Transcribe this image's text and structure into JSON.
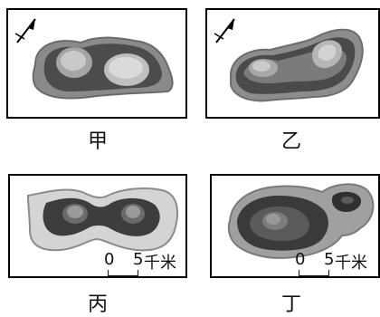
{
  "panels": [
    {
      "key": "jia",
      "caption": "甲"
    },
    {
      "key": "yi",
      "caption": "乙"
    },
    {
      "key": "bing",
      "caption": "丙"
    },
    {
      "key": "ding",
      "caption": "丁"
    }
  ],
  "scale_bar": {
    "start": "0",
    "end": "5",
    "unit": "千米"
  },
  "colors": {
    "light": "#d8d8d8",
    "mid": "#a9a9a9",
    "dark": "#555555",
    "darker": "#3c3c3c",
    "edge": "#7a7a7a"
  },
  "icons": {
    "north_arrow": "north-arrow-icon"
  }
}
